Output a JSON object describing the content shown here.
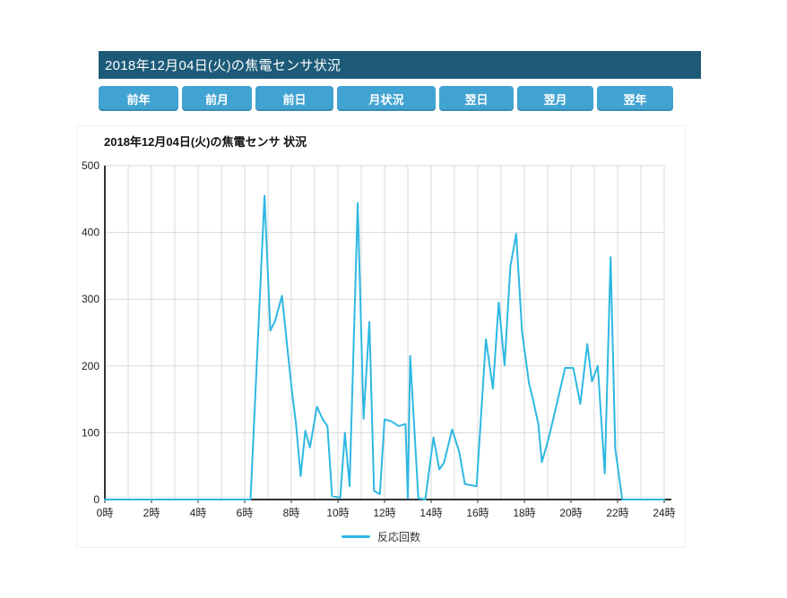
{
  "header": {
    "title": "2018年12月04日(火)の焦電センサ状況",
    "bg_color": "#1c5a78",
    "text_color": "#ffffff"
  },
  "nav": {
    "bg_color": "#41a3d1",
    "text_color": "#ffffff",
    "buttons": [
      {
        "name": "prev-year",
        "label": "前年"
      },
      {
        "name": "prev-month",
        "label": "前月"
      },
      {
        "name": "prev-day",
        "label": "前日"
      },
      {
        "name": "month-status",
        "label": "月状況"
      },
      {
        "name": "next-day",
        "label": "翌日"
      },
      {
        "name": "next-month",
        "label": "翌月"
      },
      {
        "name": "next-year",
        "label": "翌年"
      }
    ]
  },
  "chart_data": {
    "type": "line",
    "title": "2018年12月04日(火)の焦電センサ 状況",
    "xlabel": "",
    "ylabel": "",
    "x": {
      "min": 0,
      "max": 24,
      "grid_step": 1,
      "label_step": 2,
      "tick_suffix": "時"
    },
    "y": {
      "min": 0,
      "max": 500,
      "tick_step": 100
    },
    "grid": true,
    "grid_color": "#d9d9d9",
    "axis_color": "#333333",
    "legend": {
      "position": "bottom",
      "label": "反応回数"
    },
    "series": [
      {
        "name": "反応回数",
        "color": "#2eb8e2",
        "points": [
          [
            0,
            0
          ],
          [
            6.25,
            0
          ],
          [
            6.85,
            455
          ],
          [
            7.1,
            253
          ],
          [
            7.3,
            267
          ],
          [
            7.6,
            305
          ],
          [
            8.0,
            170
          ],
          [
            8.2,
            114
          ],
          [
            8.4,
            35
          ],
          [
            8.6,
            103
          ],
          [
            8.8,
            78
          ],
          [
            9.1,
            139
          ],
          [
            9.35,
            120
          ],
          [
            9.55,
            110
          ],
          [
            9.75,
            5
          ],
          [
            10.1,
            3
          ],
          [
            10.3,
            100
          ],
          [
            10.5,
            20
          ],
          [
            10.85,
            444
          ],
          [
            11.1,
            121
          ],
          [
            11.35,
            266
          ],
          [
            11.55,
            13
          ],
          [
            11.8,
            8
          ],
          [
            12.0,
            120
          ],
          [
            12.3,
            117
          ],
          [
            12.6,
            110
          ],
          [
            12.9,
            113
          ],
          [
            13.0,
            2
          ],
          [
            13.1,
            215
          ],
          [
            13.45,
            2
          ],
          [
            13.75,
            0
          ],
          [
            14.1,
            93
          ],
          [
            14.35,
            45
          ],
          [
            14.55,
            55
          ],
          [
            14.9,
            105
          ],
          [
            15.2,
            72
          ],
          [
            15.45,
            23
          ],
          [
            15.95,
            20
          ],
          [
            16.35,
            240
          ],
          [
            16.65,
            166
          ],
          [
            16.9,
            295
          ],
          [
            17.15,
            201
          ],
          [
            17.4,
            349
          ],
          [
            17.65,
            398
          ],
          [
            17.9,
            251
          ],
          [
            18.2,
            174
          ],
          [
            18.35,
            153
          ],
          [
            18.6,
            113
          ],
          [
            18.75,
            56
          ],
          [
            18.95,
            80
          ],
          [
            19.1,
            100
          ],
          [
            19.75,
            197
          ],
          [
            20.1,
            197
          ],
          [
            20.4,
            143
          ],
          [
            20.7,
            233
          ],
          [
            20.9,
            177
          ],
          [
            21.15,
            200
          ],
          [
            21.45,
            39
          ],
          [
            21.7,
            363
          ],
          [
            21.9,
            76
          ],
          [
            22.2,
            0
          ],
          [
            24,
            0
          ]
        ]
      }
    ]
  }
}
